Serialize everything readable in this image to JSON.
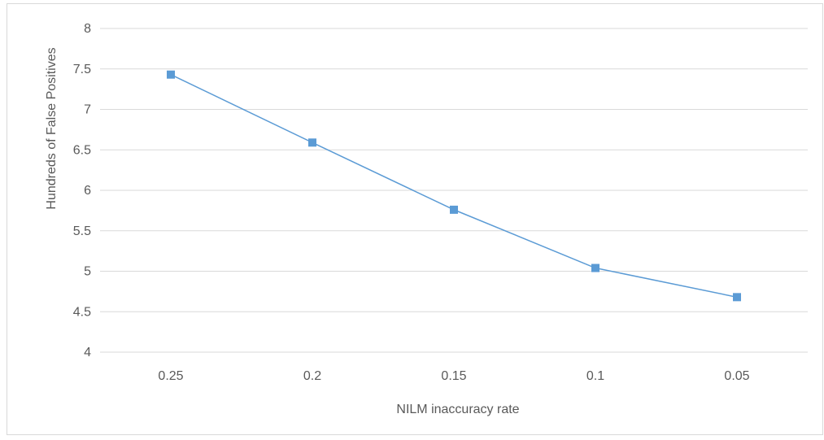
{
  "chart_data": {
    "type": "line",
    "title": "",
    "xlabel": "NILM inaccuracy rate",
    "ylabel": "Hundreds of False Positives",
    "categories": [
      "0.25",
      "0.2",
      "0.15",
      "0.1",
      "0.05"
    ],
    "series": [
      {
        "values": [
          7.43,
          6.59,
          5.76,
          5.04,
          4.68
        ]
      }
    ],
    "ylim": [
      4,
      8
    ],
    "yticks": [
      "4",
      "4.5",
      "5",
      "5.5",
      "6",
      "6.5",
      "7",
      "7.5",
      "8"
    ],
    "grid": true,
    "legend": "none",
    "colors": {
      "series": "#5b9bd5",
      "grid": "#d9d9d9",
      "text": "#595959"
    }
  }
}
